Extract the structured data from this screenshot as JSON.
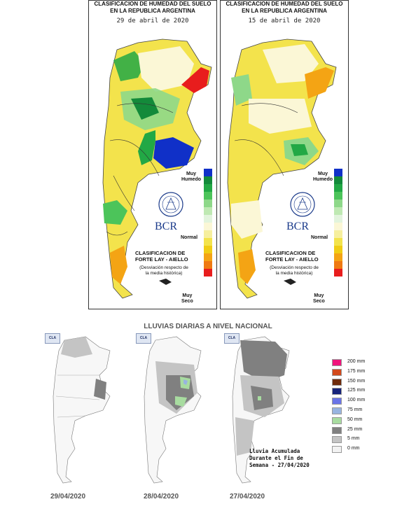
{
  "soil_maps": [
    {
      "title_line1": "CLASIFICACION DE HUMEDAD DEL SUELO",
      "title_line2": "EN LA REPUBLICA ARGENTINA",
      "date": "29 de abril de 2020"
    },
    {
      "title_line1": "CLASIFICACION DE HUME",
      "title_line1_overlap": "DAD DEL SUELO",
      "title_line2": "EN LA REPUBLICA A",
      "title_line2_overlap": "RGENTINA",
      "date": "15 de abril d",
      "date_overlap": "e 2020"
    }
  ],
  "soil_legend": {
    "top_label_line1": "Muy",
    "top_label_line2": "Humedo",
    "normal_label": "Normal",
    "bottom_label_line1": "Muy",
    "bottom_label_line2": "Seco",
    "classification_line1": "CLASIFICACION DE",
    "classification_line2": "FORTE LAY - AIELLO",
    "desc_line1": "(Desviación respecto de",
    "desc_line2": "la media histórica)",
    "colors": [
      "#1030c8",
      "#138a3a",
      "#22a845",
      "#4cc45a",
      "#8ed889",
      "#bfe9b3",
      "#e2f4dd",
      "#fbf7d6",
      "#f6ef9e",
      "#f3e34c",
      "#f0cd15",
      "#f4a414",
      "#ef7a12",
      "#e81d1d"
    ],
    "logo_text": "BCR"
  },
  "rain": {
    "title": "LLUVIAS DIARIAS A NIVEL NACIONAL",
    "badge": "CLA",
    "dates": [
      "29/04/2020",
      "28/04/2020",
      "27/04/2020"
    ],
    "note_line1": "Lluvia Acumulada",
    "note_line2": "Durante el Fin de",
    "note_line3": "Semana - 27/04/2020",
    "legend": [
      {
        "label": "200 mm",
        "color": "#f0147c"
      },
      {
        "label": "175 mm",
        "color": "#d24a1c"
      },
      {
        "label": "150 mm",
        "color": "#6e2a0a"
      },
      {
        "label": "125 mm",
        "color": "#16237a"
      },
      {
        "label": "100 mm",
        "color": "#6a74e8"
      },
      {
        "label": "75 mm",
        "color": "#98b4e0"
      },
      {
        "label": "50 mm",
        "color": "#a8dca0"
      },
      {
        "label": "25 mm",
        "color": "#808080"
      },
      {
        "label": "5 mm",
        "color": "#c4c4c4"
      },
      {
        "label": "0 mm",
        "color": "#f2f2f2"
      }
    ]
  }
}
